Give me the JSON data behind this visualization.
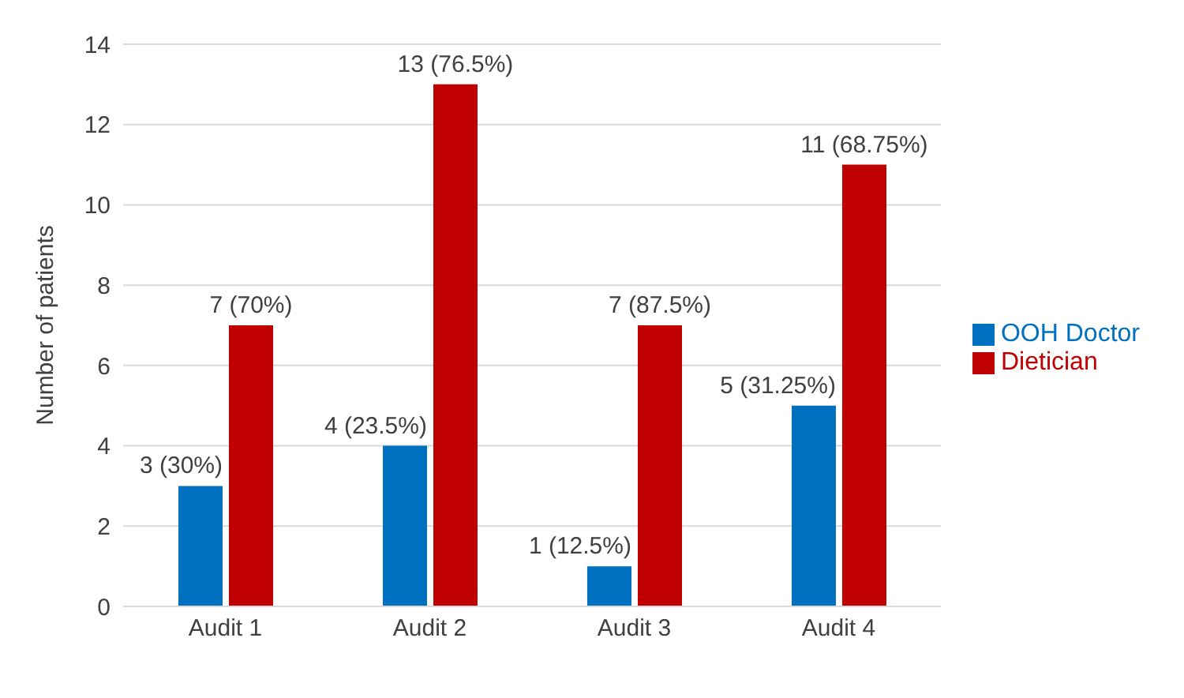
{
  "chart_data": {
    "type": "bar",
    "ylabel": "Number of patients",
    "categories": [
      "Audit 1",
      "Audit 2",
      "Audit 3",
      "Audit 4"
    ],
    "series": [
      {
        "name": "OOH Doctor",
        "color": "#0070c0",
        "values": [
          3,
          4,
          1,
          5
        ],
        "value_labels": [
          "3 (30%)",
          "4 (23.5%)",
          "1 (12.5%)",
          "5 (31.25%)"
        ]
      },
      {
        "name": "Dietician",
        "color": "#c00000",
        "values": [
          7,
          13,
          7,
          11
        ],
        "value_labels": [
          "7 (70%)",
          "13 (76.5%)",
          "7 (87.5%)",
          "11 (68.75%)"
        ]
      }
    ],
    "ylim": [
      0,
      14
    ],
    "yticks": [
      0,
      2,
      4,
      6,
      8,
      10,
      12,
      14
    ],
    "grid": "y",
    "legend": "right"
  }
}
